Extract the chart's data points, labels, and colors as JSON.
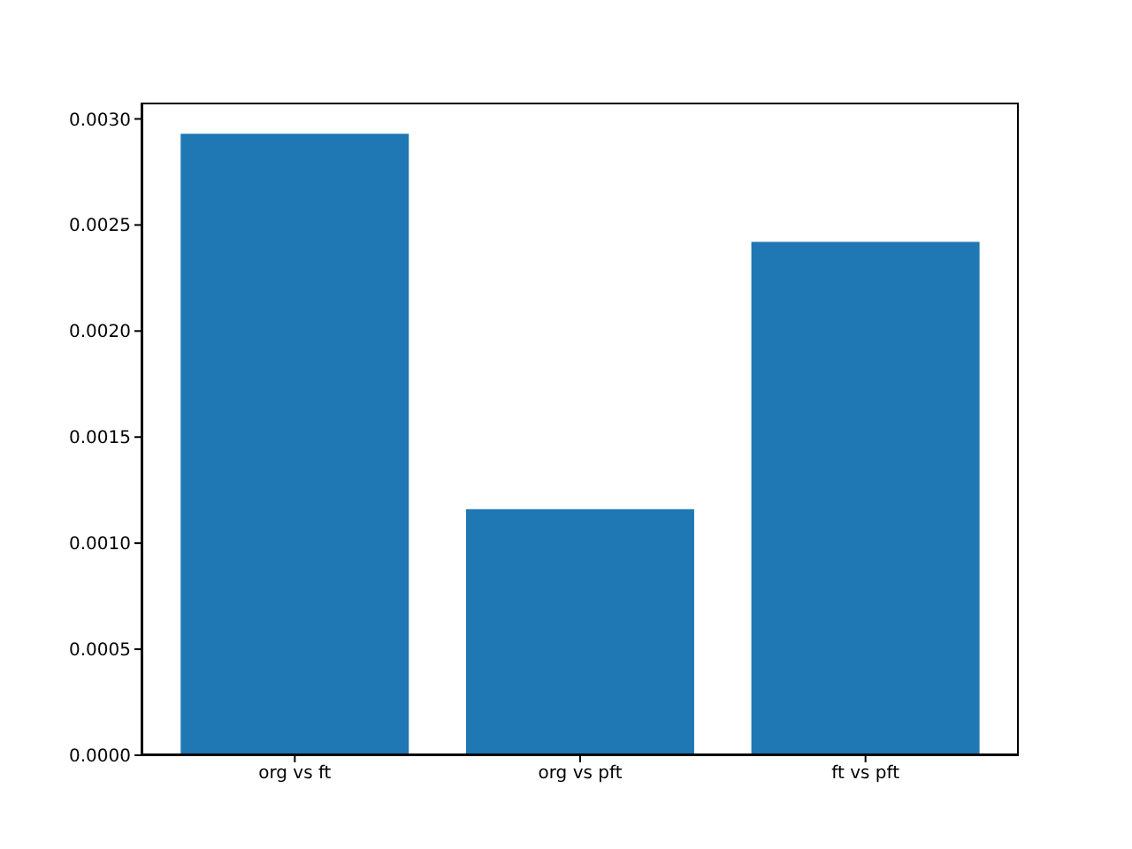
{
  "chart_data": {
    "type": "bar",
    "categories": [
      "org vs ft",
      "org vs pft",
      "ft vs pft"
    ],
    "values": [
      0.00293,
      0.00116,
      0.00242
    ],
    "color": "#1f77b4",
    "ylim": [
      0,
      0.003077
    ],
    "yticks": [
      {
        "value": 0,
        "label": "0.0000"
      },
      {
        "value": 0.0005,
        "label": "0.0005"
      },
      {
        "value": 0.001,
        "label": "0.0010"
      },
      {
        "value": 0.0015,
        "label": "0.0015"
      },
      {
        "value": 0.002,
        "label": "0.0020"
      },
      {
        "value": 0.0025,
        "label": "0.0025"
      },
      {
        "value": 0.003,
        "label": "0.0030"
      }
    ],
    "grid": false
  }
}
